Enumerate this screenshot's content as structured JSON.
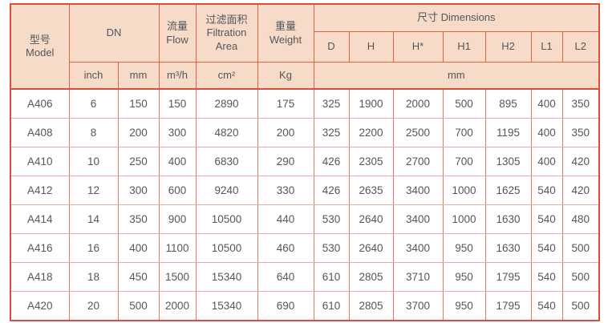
{
  "colors": {
    "header_bg": "#f6dbc9",
    "header_border": "#df6145",
    "outer_border": "#d8503b",
    "body_vertical_border": "#e5776d",
    "body_horizontal_border": "#f1a8a3",
    "text": "#54565a",
    "body_bg": "#ffffff"
  },
  "header": {
    "model": "型号\nModel",
    "dn": "DN",
    "flow": "流量\nFlow",
    "filtration_area": "过滤面积\nFiltration\nArea",
    "weight": "重量\nWeight",
    "dimensions": "尺寸 Dimensions",
    "dim_cols": [
      "D",
      "H",
      "H*",
      "H1",
      "H2",
      "L1",
      "L2"
    ],
    "unit_inch": "inch",
    "unit_mm": "mm",
    "unit_flow": "m³/h",
    "unit_area": "cm²",
    "unit_weight": "Kg",
    "unit_dims": "mm"
  },
  "columns": [
    "model",
    "dn_inch",
    "dn_mm",
    "flow",
    "filtration_area",
    "weight",
    "dim_d",
    "dim_h",
    "dim_h_star",
    "dim_h1",
    "dim_h2",
    "dim_l1",
    "dim_l2"
  ],
  "rows": [
    [
      "A406",
      "6",
      "150",
      "150",
      "2890",
      "175",
      "325",
      "1900",
      "2000",
      "500",
      "895",
      "400",
      "350"
    ],
    [
      "A408",
      "8",
      "200",
      "300",
      "4820",
      "200",
      "325",
      "2200",
      "2500",
      "700",
      "1195",
      "400",
      "350"
    ],
    [
      "A410",
      "10",
      "250",
      "400",
      "6830",
      "290",
      "426",
      "2305",
      "2700",
      "700",
      "1305",
      "400",
      "420"
    ],
    [
      "A412",
      "12",
      "300",
      "600",
      "9240",
      "330",
      "426",
      "2635",
      "3400",
      "1000",
      "1625",
      "540",
      "420"
    ],
    [
      "A414",
      "14",
      "350",
      "900",
      "10500",
      "440",
      "530",
      "2640",
      "3400",
      "1000",
      "1630",
      "540",
      "480"
    ],
    [
      "A416",
      "16",
      "400",
      "1100",
      "10500",
      "460",
      "530",
      "2640",
      "3400",
      "950",
      "1630",
      "540",
      "500"
    ],
    [
      "A418",
      "18",
      "450",
      "1500",
      "15340",
      "640",
      "610",
      "2805",
      "3710",
      "950",
      "1795",
      "540",
      "500"
    ],
    [
      "A420",
      "20",
      "500",
      "2000",
      "15340",
      "690",
      "610",
      "2805",
      "3700",
      "950",
      "1795",
      "540",
      "500"
    ]
  ]
}
